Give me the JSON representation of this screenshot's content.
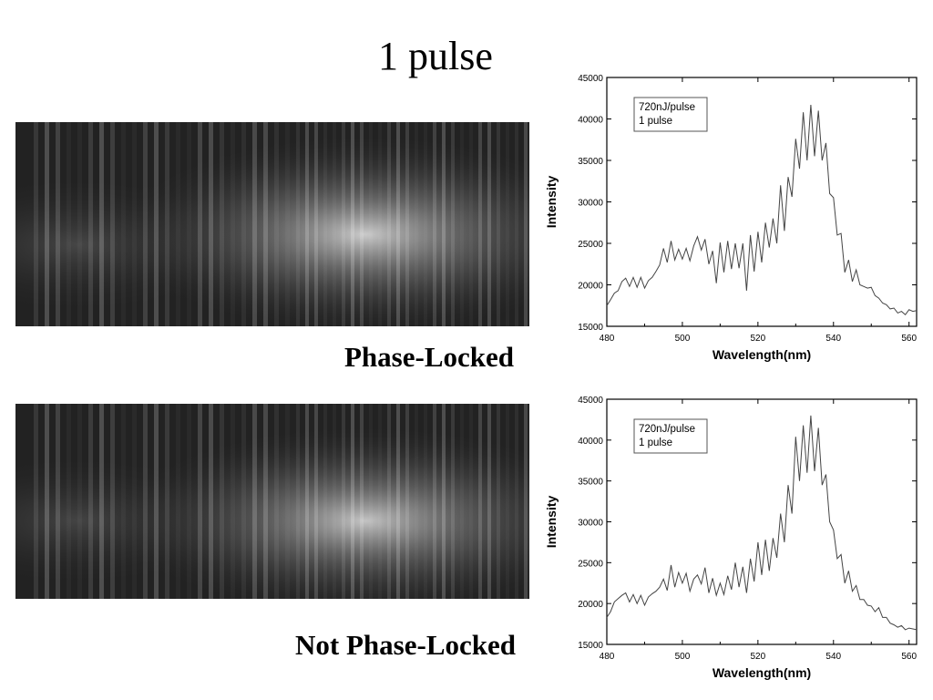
{
  "slide": {
    "title": "1 pulse",
    "captions": {
      "top": "Phase-Locked",
      "bottom": "Not Phase-Locked"
    }
  },
  "chart_data": [
    {
      "type": "line",
      "id": "phase-locked",
      "title": "",
      "xlabel": "Wavelength(nm)",
      "ylabel": "Intensity",
      "xlim": [
        480,
        562
      ],
      "ylim": [
        15000,
        45000
      ],
      "xticks": [
        480,
        500,
        520,
        540,
        560
      ],
      "yticks": [
        15000,
        20000,
        25000,
        30000,
        35000,
        40000,
        45000
      ],
      "legend_box": [
        "720nJ/pulse",
        "1 pulse"
      ],
      "grid": false,
      "x": [
        480,
        481,
        482,
        483,
        484,
        485,
        486,
        487,
        488,
        489,
        490,
        491,
        492,
        493,
        494,
        495,
        496,
        497,
        498,
        499,
        500,
        501,
        502,
        503,
        504,
        505,
        506,
        507,
        508,
        509,
        510,
        511,
        512,
        513,
        514,
        515,
        516,
        517,
        518,
        519,
        520,
        521,
        522,
        523,
        524,
        525,
        526,
        527,
        528,
        529,
        530,
        531,
        532,
        533,
        534,
        535,
        536,
        537,
        538,
        539,
        540,
        541,
        542,
        543,
        544,
        545,
        546,
        547,
        548,
        549,
        550,
        551,
        552,
        553,
        554,
        555,
        556,
        557,
        558,
        559,
        560,
        561,
        562
      ],
      "y": [
        17500,
        18200,
        19000,
        19300,
        20400,
        20800,
        19800,
        20900,
        19700,
        20900,
        19600,
        20500,
        20900,
        21600,
        22400,
        24400,
        22700,
        25300,
        23000,
        24300,
        23100,
        24400,
        22900,
        24700,
        25800,
        24200,
        25500,
        22500,
        24100,
        20200,
        25100,
        21500,
        25300,
        21900,
        25000,
        22000,
        25000,
        19300,
        26000,
        21600,
        26400,
        22700,
        27500,
        24500,
        28000,
        25000,
        32000,
        26500,
        33000,
        30600,
        37600,
        34000,
        40800,
        35000,
        41700,
        35500,
        41000,
        35000,
        37100,
        31000,
        30500,
        26000,
        26200,
        21500,
        23000,
        20400,
        21800,
        20000,
        19800,
        19600,
        19700,
        18700,
        18400,
        17800,
        17600,
        17100,
        17200,
        16600,
        16800,
        16400,
        17000,
        16800,
        16900
      ]
    },
    {
      "type": "line",
      "id": "not-phase-locked",
      "title": "",
      "xlabel": "Wavelength(nm)",
      "ylabel": "Intensity",
      "xlim": [
        480,
        562
      ],
      "ylim": [
        15000,
        45000
      ],
      "xticks": [
        480,
        500,
        520,
        540,
        560
      ],
      "yticks": [
        15000,
        20000,
        25000,
        30000,
        35000,
        40000,
        45000
      ],
      "legend_box": [
        "720nJ/pulse",
        "1 pulse"
      ],
      "grid": false,
      "x": [
        480,
        481,
        482,
        483,
        484,
        485,
        486,
        487,
        488,
        489,
        490,
        491,
        492,
        493,
        494,
        495,
        496,
        497,
        498,
        499,
        500,
        501,
        502,
        503,
        504,
        505,
        506,
        507,
        508,
        509,
        510,
        511,
        512,
        513,
        514,
        515,
        516,
        517,
        518,
        519,
        520,
        521,
        522,
        523,
        524,
        525,
        526,
        527,
        528,
        529,
        530,
        531,
        532,
        533,
        534,
        535,
        536,
        537,
        538,
        539,
        540,
        541,
        542,
        543,
        544,
        545,
        546,
        547,
        548,
        549,
        550,
        551,
        552,
        553,
        554,
        555,
        556,
        557,
        558,
        559,
        560,
        561,
        562
      ],
      "y": [
        18300,
        19000,
        20200,
        20600,
        21000,
        21300,
        20200,
        21100,
        20000,
        21000,
        19800,
        20800,
        21200,
        21500,
        22000,
        23000,
        21600,
        24700,
        22000,
        23800,
        22500,
        23700,
        21500,
        23000,
        23500,
        22400,
        24400,
        21300,
        23100,
        21000,
        22500,
        21100,
        23400,
        21700,
        25000,
        22000,
        24500,
        21300,
        25500,
        22700,
        27500,
        23500,
        27800,
        24000,
        28000,
        25600,
        31000,
        27500,
        34500,
        31000,
        40400,
        35000,
        41800,
        36000,
        43000,
        36200,
        41500,
        34500,
        35800,
        30000,
        29000,
        25500,
        26000,
        22500,
        24000,
        21500,
        22200,
        20500,
        20500,
        19800,
        19700,
        19000,
        19500,
        18300,
        18300,
        17600,
        17400,
        17100,
        17300,
        16800,
        17000,
        16900,
        16800
      ]
    }
  ]
}
